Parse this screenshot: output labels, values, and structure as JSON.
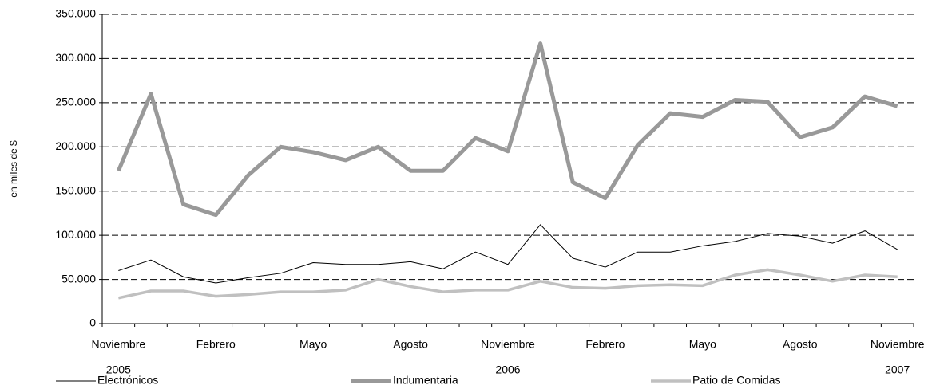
{
  "chart_data": {
    "type": "line",
    "y_label": "en miles de $",
    "categories": [
      "Noviembre",
      null,
      null,
      "Febrero",
      null,
      null,
      "Mayo",
      null,
      null,
      "Agosto",
      null,
      null,
      "Noviembre",
      null,
      null,
      "Febrero",
      null,
      null,
      "Mayo",
      null,
      null,
      "Agosto",
      null,
      null,
      "Noviembre"
    ],
    "year_labels": [
      "2005",
      null,
      null,
      null,
      null,
      null,
      null,
      null,
      null,
      null,
      null,
      null,
      "2006",
      null,
      null,
      null,
      null,
      null,
      null,
      null,
      null,
      null,
      null,
      null,
      "2007"
    ],
    "ylim": [
      0,
      350000
    ],
    "yticks": [
      0,
      {
        "value": 50000,
        "label": "50.000"
      },
      {
        "value": 100000,
        "label": "100.000"
      },
      {
        "value": 150000,
        "label": "150.000"
      },
      {
        "value": 200000,
        "label": "200.000"
      },
      {
        "value": 250000,
        "label": "250.000"
      },
      {
        "value": 300000,
        "label": "300.000"
      },
      {
        "value": 350000,
        "label": "350.000"
      }
    ],
    "grid": true,
    "series": [
      {
        "name": "Electrónicos",
        "color": "#000000",
        "width": 1,
        "values": [
          60000,
          72000,
          53000,
          46000,
          52000,
          57000,
          69000,
          67000,
          67000,
          70000,
          62000,
          81000,
          67000,
          112000,
          74000,
          64000,
          81000,
          81000,
          88000,
          93000,
          102000,
          99000,
          91000,
          105000,
          84000
        ]
      },
      {
        "name": "Indumentaria",
        "color": "#999999",
        "width": 5,
        "values": [
          173000,
          260000,
          135000,
          123000,
          168000,
          200000,
          194000,
          185000,
          200000,
          173000,
          173000,
          210000,
          195000,
          317000,
          160000,
          142000,
          202000,
          238000,
          234000,
          253000,
          251000,
          211000,
          222000,
          257000,
          246000
        ]
      },
      {
        "name": "Patio de Comidas",
        "color": "#c0c0c0",
        "width": 3.5,
        "values": [
          29000,
          37000,
          37000,
          31000,
          33000,
          36000,
          36000,
          38000,
          50000,
          42000,
          36000,
          38000,
          38000,
          48000,
          41000,
          40000,
          43000,
          44000,
          43000,
          55000,
          61000,
          55000,
          48000,
          55000,
          53000
        ]
      }
    ]
  }
}
